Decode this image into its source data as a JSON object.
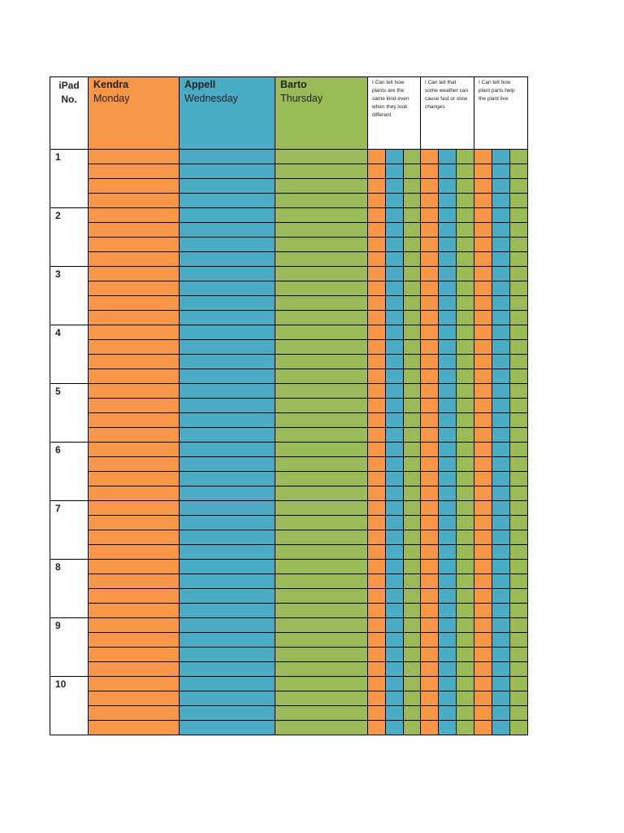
{
  "header": {
    "ipad_label_line1": "iPad",
    "ipad_label_line2": "No.",
    "teachers": [
      {
        "name": "Kendra",
        "day": "Monday"
      },
      {
        "name": "Appell",
        "day": "Wednesday"
      },
      {
        "name": "Barto",
        "day": "Thursday"
      }
    ],
    "goals": [
      "I Can tell how plants are the same kind even when they look different",
      "I Can tell that some weather can cause fast or slow changes",
      "I Can tell how plant parts help the plant live"
    ]
  },
  "ipads": [
    "1",
    "2",
    "3",
    "4",
    "5",
    "6",
    "7",
    "8",
    "9",
    "10"
  ],
  "colors": {
    "orange": "#F79646",
    "blue": "#4BACC6",
    "green": "#9BBB59"
  }
}
